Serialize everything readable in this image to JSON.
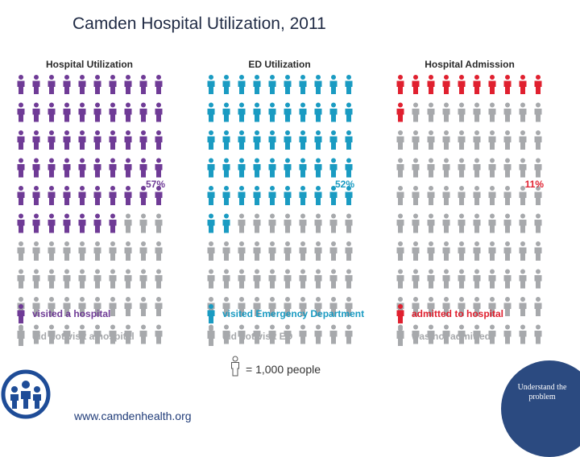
{
  "slide": {
    "title": "Camden Hospital Utilization, 2011",
    "footer_url": "www.camdenhealth.org",
    "corner_text": "Understand the problem"
  },
  "chart_data": {
    "type": "pictograph",
    "icon_unit_label": "= 1,000 people",
    "icons_per_panel": 100,
    "panels": [
      {
        "title": "Hospital Utilization",
        "percent": 57,
        "percent_label": "57%",
        "highlight_color": "#6f3b96",
        "legend_highlight": "visited a hospital",
        "legend_rest": "did not visit a hospital"
      },
      {
        "title": "ED Utilization",
        "percent": 52,
        "percent_label": "52%",
        "highlight_color": "#1a9bc2",
        "legend_highlight": "visited Emergency Department",
        "legend_rest": "did not visit ED"
      },
      {
        "title": "Hospital Admission",
        "percent": 11,
        "percent_label": "11%",
        "highlight_color": "#e0202f",
        "legend_highlight": "admitted to hospital",
        "legend_rest": "was not admitted"
      }
    ],
    "rest_color": "#a7a9ac"
  }
}
